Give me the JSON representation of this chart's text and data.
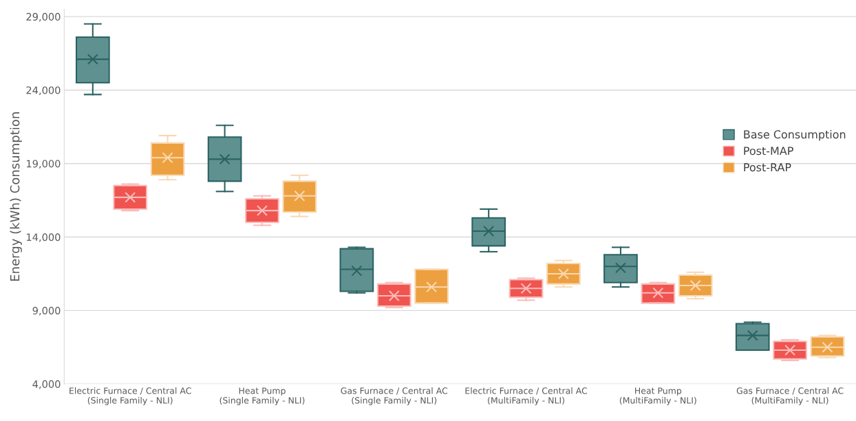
{
  "chart_data": {
    "type": "box",
    "ylabel": "Energy (kWh) Consumption",
    "categories": [
      "Electric Furnace / Central AC\n(Single Family - NLI)",
      "Heat Pump\n(Single Family - NLI)",
      "Gas Furnace / Central AC\n(Single Family - NLI)",
      "Electric Furnace / Central AC\n(MultiFamily - NLI)",
      "Heat Pump\n(MultiFamily - NLI)",
      "Gas Furnace / Central AC\n(MultiFamily - NLI)"
    ],
    "series": [
      {
        "name": "Base Consumption",
        "color": "#5f9191",
        "boxes": [
          {
            "low": 23700,
            "q1": 24500,
            "median": 26100,
            "q3": 27600,
            "high": 28500,
            "mean": 26100
          },
          {
            "low": 17100,
            "q1": 17800,
            "median": 19300,
            "q3": 20800,
            "high": 21600,
            "mean": 19300
          },
          {
            "low": 10200,
            "q1": 10300,
            "median": 11800,
            "q3": 13200,
            "high": 13300,
            "mean": 11700
          },
          {
            "low": 13000,
            "q1": 13400,
            "median": 14400,
            "q3": 15300,
            "high": 15900,
            "mean": 14400
          },
          {
            "low": 10600,
            "q1": 10900,
            "median": 12000,
            "q3": 12800,
            "high": 13300,
            "mean": 11900
          },
          {
            "low": 6300,
            "q1": 6300,
            "median": 7300,
            "q3": 8100,
            "high": 8200,
            "mean": 7300
          }
        ]
      },
      {
        "name": "Post-MAP",
        "color": "#f05450",
        "boxes": [
          {
            "low": 15800,
            "q1": 15900,
            "median": 16700,
            "q3": 17500,
            "high": 17600,
            "mean": 16700
          },
          {
            "low": 14800,
            "q1": 15000,
            "median": 15800,
            "q3": 16600,
            "high": 16800,
            "mean": 15800
          },
          {
            "low": 9200,
            "q1": 9300,
            "median": 10000,
            "q3": 10800,
            "high": 10900,
            "mean": 10000
          },
          {
            "low": 9700,
            "q1": 9900,
            "median": 10500,
            "q3": 11100,
            "high": 11200,
            "mean": 10500
          },
          {
            "low": 9500,
            "q1": 9500,
            "median": 10200,
            "q3": 10800,
            "high": 10900,
            "mean": 10200
          },
          {
            "low": 5600,
            "q1": 5700,
            "median": 6300,
            "q3": 6900,
            "high": 7000,
            "mean": 6300
          }
        ]
      },
      {
        "name": "Post-RAP",
        "color": "#eda040",
        "boxes": [
          {
            "low": 17900,
            "q1": 18200,
            "median": 19400,
            "q3": 20400,
            "high": 20900,
            "mean": 19400
          },
          {
            "low": 15400,
            "q1": 15700,
            "median": 16800,
            "q3": 17800,
            "high": 18200,
            "mean": 16800
          },
          {
            "low": 9500,
            "q1": 9500,
            "median": 10600,
            "q3": 11800,
            "high": 11800,
            "mean": 10600
          },
          {
            "low": 10600,
            "q1": 10800,
            "median": 11500,
            "q3": 12200,
            "high": 12400,
            "mean": 11500
          },
          {
            "low": 9800,
            "q1": 10000,
            "median": 10700,
            "q3": 11400,
            "high": 11600,
            "mean": 10700
          },
          {
            "low": 5800,
            "q1": 5900,
            "median": 6500,
            "q3": 7200,
            "high": 7300,
            "mean": 6500
          }
        ]
      }
    ],
    "ylim": [
      4000,
      29500
    ],
    "yticks": [
      {
        "value": 4000,
        "label": "4,000"
      },
      {
        "value": 9000,
        "label": "9,000"
      },
      {
        "value": 14000,
        "label": "14,000"
      },
      {
        "value": 19000,
        "label": "19,000"
      },
      {
        "value": 24000,
        "label": "24,000"
      },
      {
        "value": 29000,
        "label": "29,000"
      }
    ],
    "grid": "y",
    "legend": "right"
  }
}
